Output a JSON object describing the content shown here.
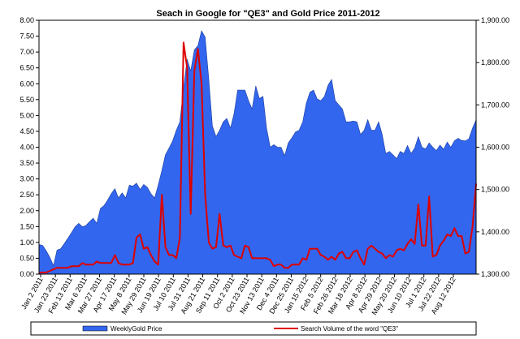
{
  "chart_data": {
    "type": "area+line",
    "title": "Seach in Google for \"QE3\" and Gold Price 2011-2012",
    "xlabel": "",
    "ylabel_left": "",
    "ylabel_right": "",
    "left_axis": {
      "ylim": [
        0,
        8
      ],
      "ticks": [
        "0.00",
        "0.50",
        "1.00",
        "1.50",
        "2.00",
        "2.50",
        "3.00",
        "3.50",
        "4.00",
        "4.50",
        "5.00",
        "5.50",
        "6.00",
        "6.50",
        "7.00",
        "7.50",
        "8.00"
      ]
    },
    "right_axis": {
      "ylim": [
        1300,
        1900
      ],
      "ticks": [
        "1,300.00",
        "1,400.00",
        "1,500.00",
        "1,600.00",
        "1,700.00",
        "1,800.00",
        "1,900.00"
      ]
    },
    "x_ticks": [
      "Jan 2 2011",
      "Jan 23 2011",
      "Feb 13 2011",
      "Mar 6 2011",
      "Mar 27 2011",
      "Apr 17 2011",
      "May 8 2011",
      "May 29 2011",
      "Jun 19 2011",
      "Jul 10 2011",
      "Jul 31 2011",
      "Aug 21 2011",
      "Sep 11 2011",
      "Oct 2 2011",
      "Oct 23 2011",
      "Nov 13 2011",
      "Dec 4 2011",
      "Dec 25 2011",
      "Jan 15 2012",
      "Feb 5 2012",
      "Feb 26 2012",
      "Mar 18 2012",
      "Apr 8 2012",
      "Apr 29 2012",
      "May 20 2012",
      "Jun 10 2012",
      "Jul 1 2012",
      "Jul 22 2012",
      "Aug 12 2012"
    ],
    "grid": false,
    "legend_position": "bottom",
    "series": [
      {
        "name": "WeeklyGold Price",
        "kind": "area",
        "axis": "right",
        "color": "#3366ee",
        "values": [
          1370,
          1368,
          1355,
          1340,
          1320,
          1357,
          1360,
          1372,
          1385,
          1398,
          1412,
          1420,
          1412,
          1415,
          1424,
          1432,
          1420,
          1455,
          1462,
          1475,
          1490,
          1502,
          1480,
          1492,
          1480,
          1510,
          1508,
          1515,
          1500,
          1512,
          1505,
          1490,
          1480,
          1510,
          1545,
          1582,
          1598,
          1615,
          1640,
          1660,
          1740,
          1808,
          1780,
          1830,
          1840,
          1875,
          1860,
          1760,
          1650,
          1625,
          1640,
          1660,
          1668,
          1645,
          1680,
          1735,
          1735,
          1735,
          1710,
          1690,
          1745,
          1715,
          1720,
          1645,
          1600,
          1606,
          1600,
          1600,
          1580,
          1610,
          1622,
          1636,
          1640,
          1660,
          1704,
          1730,
          1735,
          1714,
          1710,
          1720,
          1746,
          1760,
          1710,
          1700,
          1690,
          1660,
          1660,
          1662,
          1660,
          1630,
          1640,
          1665,
          1640,
          1640,
          1660,
          1630,
          1585,
          1590,
          1582,
          1573,
          1590,
          1585,
          1604,
          1585,
          1598,
          1625,
          1600,
          1596,
          1610,
          1600,
          1592,
          1605,
          1595,
          1612,
          1600,
          1615,
          1621,
          1616,
          1615,
          1620,
          1645,
          1665
        ]
      },
      {
        "name": "Search Volume of the word \"QE3\"",
        "kind": "line",
        "axis": "left",
        "color": "#dd0000",
        "values": [
          0.05,
          0.05,
          0.05,
          0.1,
          0.15,
          0.2,
          0.2,
          0.2,
          0.2,
          0.25,
          0.25,
          0.25,
          0.35,
          0.3,
          0.3,
          0.3,
          0.4,
          0.35,
          0.35,
          0.35,
          0.35,
          0.6,
          0.35,
          0.3,
          0.3,
          0.3,
          0.35,
          1.15,
          1.25,
          0.8,
          0.85,
          0.6,
          0.4,
          0.3,
          2.5,
          0.85,
          0.6,
          0.6,
          0.5,
          1.15,
          7.3,
          6.5,
          1.9,
          6.4,
          7.1,
          6.0,
          2.5,
          1.0,
          0.8,
          0.85,
          1.9,
          0.9,
          0.85,
          0.9,
          0.6,
          0.55,
          0.5,
          0.9,
          0.85,
          0.5,
          0.5,
          0.5,
          0.5,
          0.5,
          0.45,
          0.25,
          0.3,
          0.3,
          0.2,
          0.2,
          0.3,
          0.3,
          0.3,
          0.5,
          0.45,
          0.8,
          0.8,
          0.8,
          0.6,
          0.55,
          0.45,
          0.55,
          0.45,
          0.65,
          0.7,
          0.5,
          0.5,
          0.7,
          0.75,
          0.5,
          0.3,
          0.8,
          0.9,
          0.8,
          0.7,
          0.65,
          0.5,
          0.6,
          0.55,
          0.75,
          0.8,
          0.75,
          0.95,
          1.1,
          0.95,
          2.2,
          0.9,
          0.9,
          2.45,
          0.55,
          0.6,
          0.9,
          1.05,
          1.25,
          1.2,
          1.45,
          1.2,
          1.2,
          0.65,
          0.7,
          1.5,
          2.85
        ]
      }
    ]
  }
}
